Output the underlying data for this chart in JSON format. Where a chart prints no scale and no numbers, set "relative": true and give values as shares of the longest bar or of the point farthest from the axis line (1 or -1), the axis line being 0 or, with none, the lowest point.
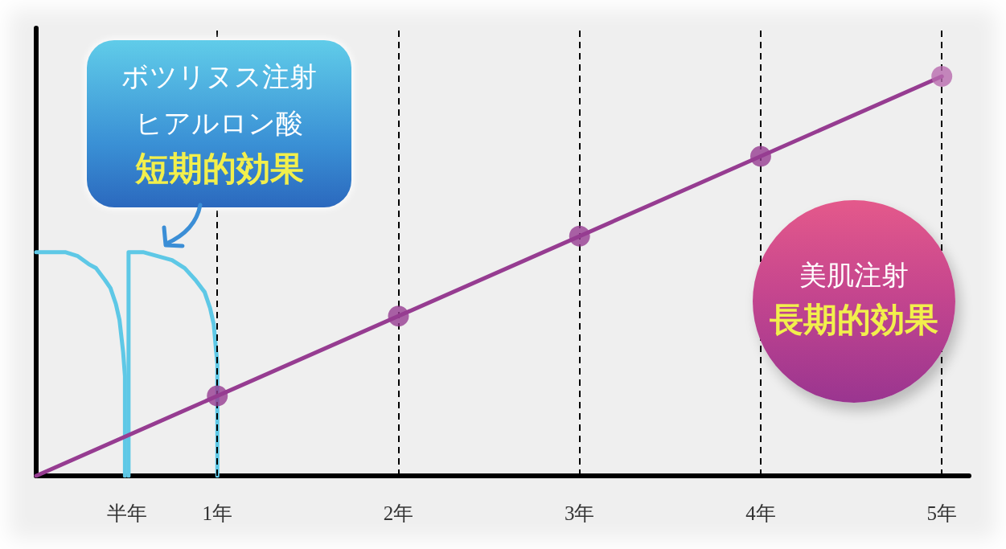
{
  "chart_data": {
    "type": "line",
    "relative": true,
    "tick_labels": "x",
    "xlim": [
      0,
      5.15
    ],
    "xticks": [
      {
        "value": 0.5,
        "label": "半年"
      },
      {
        "value": 1,
        "label": "1年"
      },
      {
        "value": 2,
        "label": "2年"
      },
      {
        "value": 3,
        "label": "3年"
      },
      {
        "value": 4,
        "label": "4年"
      },
      {
        "value": 5,
        "label": "5年"
      }
    ],
    "series": [
      {
        "color": "#5ec8e6",
        "marker": "none",
        "x": [
          0,
          0.08,
          0.16,
          0.23,
          0.29,
          0.33,
          0.38,
          0.41,
          0.44,
          0.46,
          0.47,
          0.48,
          0.49,
          0.49
        ],
        "values": [
          0.56,
          0.56,
          0.56,
          0.55,
          0.53,
          0.52,
          0.49,
          0.47,
          0.43,
          0.39,
          0.35,
          0.31,
          0.25,
          0
        ]
      },
      {
        "color": "#5ec8e6",
        "marker": "none",
        "x": [
          0.51,
          0.51,
          0.59,
          0.67,
          0.75,
          0.82,
          0.88,
          0.93,
          0.96,
          0.98,
          0.99,
          1,
          1
        ],
        "values": [
          0,
          0.56,
          0.56,
          0.55,
          0.54,
          0.52,
          0.49,
          0.46,
          0.42,
          0.38,
          0.33,
          0.28,
          0
        ]
      },
      {
        "color": "#963c91",
        "marker": "none",
        "x": [
          0,
          5
        ],
        "values": [
          0,
          1
        ]
      },
      {
        "type": "scatter",
        "marker": "circle",
        "colors": [
          "#963c91",
          "#963c91",
          "#963c91",
          "#963c91",
          "#b86aae"
        ],
        "x": [
          1,
          2,
          3,
          4,
          5
        ],
        "values": [
          0.2,
          0.4,
          0.6,
          0.8,
          1
        ]
      }
    ],
    "ref_lines": [
      {
        "axis": "x",
        "value": 1,
        "line_style": "dashed",
        "color": "#000000"
      },
      {
        "axis": "x",
        "value": 2,
        "line_style": "dashed",
        "color": "#000000"
      },
      {
        "axis": "x",
        "value": 3,
        "line_style": "dashed",
        "color": "#000000"
      },
      {
        "axis": "x",
        "value": 4,
        "line_style": "dashed",
        "color": "#000000"
      },
      {
        "axis": "x",
        "value": 5,
        "line_style": "dashed",
        "color": "#000000"
      }
    ],
    "annotations": [
      "ボツリヌス注射",
      "ヒアルロン酸",
      "短期的効果",
      "美肌注射",
      "長期的効果"
    ]
  }
}
